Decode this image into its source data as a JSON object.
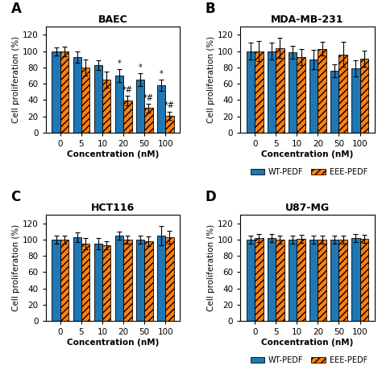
{
  "chart_data": [
    {
      "type": "bar",
      "title": "BAEC",
      "panel_label": "A",
      "xlabel": "Concentration (nM)",
      "ylabel": "Cell proliferation (%)",
      "categories": [
        "0",
        "5",
        "10",
        "20",
        "50",
        "100"
      ],
      "series": [
        {
          "name": "WT-PEDF",
          "values": [
            100,
            93,
            83,
            70,
            65,
            58
          ],
          "errors": [
            5,
            7,
            6,
            8,
            8,
            7
          ],
          "annotations": [
            null,
            null,
            null,
            "*",
            "*",
            "*"
          ]
        },
        {
          "name": "EEE-PEDF",
          "values": [
            100,
            80,
            65,
            39,
            30,
            21
          ],
          "errors": [
            6,
            10,
            10,
            6,
            5,
            5
          ],
          "annotations": [
            null,
            null,
            null,
            "*#",
            "*#",
            "*#"
          ]
        }
      ],
      "ylim": [
        0,
        130
      ],
      "yticks": [
        0,
        20,
        40,
        60,
        80,
        100,
        120
      ]
    },
    {
      "type": "bar",
      "title": "MDA-MB-231",
      "panel_label": "B",
      "xlabel": "Concentration (nM)",
      "ylabel": "Cell proliferation (%)",
      "categories": [
        "0",
        "5",
        "10",
        "20",
        "50",
        "100"
      ],
      "series": [
        {
          "name": "WT-PEDF",
          "values": [
            100,
            100,
            99,
            90,
            76,
            79
          ],
          "errors": [
            10,
            10,
            8,
            12,
            8,
            10
          ]
        },
        {
          "name": "EEE-PEDF",
          "values": [
            100,
            104,
            93,
            103,
            96,
            91
          ],
          "errors": [
            12,
            12,
            10,
            8,
            15,
            10
          ]
        }
      ],
      "ylim": [
        0,
        130
      ],
      "yticks": [
        0,
        20,
        40,
        60,
        80,
        100,
        120
      ],
      "legend": "below"
    },
    {
      "type": "bar",
      "title": "HCT116",
      "panel_label": "C",
      "xlabel": "Concentration (nM)",
      "ylabel": "Cell proliferation (%)",
      "categories": [
        "0",
        "5",
        "10",
        "20",
        "50",
        "100"
      ],
      "series": [
        {
          "name": "WT-PEDF",
          "values": [
            100,
            103,
            95,
            105,
            100,
            105
          ],
          "errors": [
            5,
            6,
            7,
            5,
            5,
            12
          ]
        },
        {
          "name": "EEE-PEDF",
          "values": [
            100,
            95,
            93,
            100,
            98,
            103
          ],
          "errors": [
            5,
            7,
            5,
            5,
            6,
            8
          ]
        }
      ],
      "ylim": [
        0,
        130
      ],
      "yticks": [
        0,
        20,
        40,
        60,
        80,
        100,
        120
      ]
    },
    {
      "type": "bar",
      "title": "U87-MG",
      "panel_label": "D",
      "xlabel": "Concentration (nM)",
      "ylabel": "Cell proliferation (%)",
      "categories": [
        "0",
        "5",
        "10",
        "20",
        "50",
        "100"
      ],
      "series": [
        {
          "name": "WT-PEDF",
          "values": [
            100,
            102,
            100,
            100,
            100,
            102
          ],
          "errors": [
            5,
            5,
            5,
            5,
            5,
            5
          ]
        },
        {
          "name": "EEE-PEDF",
          "values": [
            102,
            100,
            101,
            100,
            100,
            101
          ],
          "errors": [
            5,
            5,
            5,
            5,
            5,
            5
          ]
        }
      ],
      "ylim": [
        0,
        130
      ],
      "yticks": [
        0,
        20,
        40,
        60,
        80,
        100,
        120
      ],
      "legend": "below"
    }
  ]
}
